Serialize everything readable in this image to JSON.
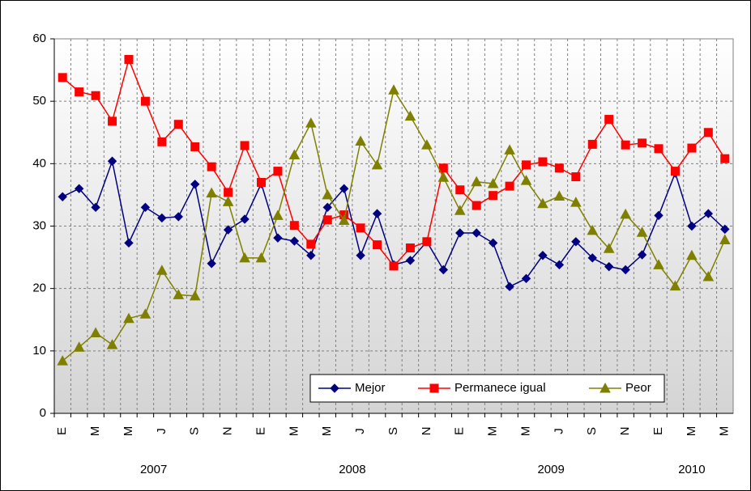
{
  "chart_data": {
    "type": "line",
    "categories": [
      "E",
      null,
      "M",
      null,
      "M",
      null,
      "J",
      null,
      "S",
      null,
      "N",
      null,
      "E",
      null,
      "M",
      null,
      "M",
      null,
      "J",
      null,
      "S",
      null,
      "N",
      null,
      "E",
      null,
      "M",
      null,
      "M",
      null,
      "J",
      null,
      "S",
      null,
      "N",
      null,
      "E",
      null,
      "M",
      null,
      "M"
    ],
    "years": [
      "2007",
      "2008",
      "2009",
      "2010"
    ],
    "ylim": [
      0,
      60
    ],
    "yticks": [
      0,
      10,
      20,
      30,
      40,
      50,
      60
    ],
    "grid": true,
    "series": [
      {
        "name": "Mejor",
        "color": "#000080",
        "marker": "diamond",
        "values": [
          34.7,
          36.0,
          33.0,
          40.4,
          27.3,
          33.0,
          31.3,
          31.5,
          36.7,
          24.0,
          29.4,
          31.1,
          36.8,
          28.1,
          27.6,
          25.3,
          33.0,
          36.0,
          25.3,
          32.0,
          23.8,
          24.5,
          27.5,
          23.0,
          28.9,
          28.9,
          27.3,
          20.3,
          21.6,
          25.3,
          23.8,
          27.5,
          24.9,
          23.5,
          23.0,
          25.4,
          31.7,
          38.5,
          30.0,
          32.0,
          29.5
        ]
      },
      {
        "name": "Permanece igual",
        "color": "#ff0000",
        "marker": "square",
        "values": [
          53.8,
          51.5,
          50.9,
          46.8,
          56.7,
          50.0,
          43.5,
          46.3,
          42.7,
          39.5,
          35.4,
          42.9,
          37.0,
          38.8,
          30.1,
          27.1,
          31.0,
          31.8,
          29.7,
          27.0,
          23.6,
          26.5,
          27.5,
          39.3,
          35.8,
          33.3,
          34.9,
          36.4,
          39.8,
          40.3,
          39.3,
          37.9,
          43.1,
          47.1,
          43.0,
          43.3,
          42.4,
          38.8,
          42.5,
          45.0,
          40.8
        ]
      },
      {
        "name": "Peor",
        "color": "#808000",
        "marker": "triangle",
        "values": [
          8.4,
          10.6,
          12.9,
          11.0,
          15.2,
          15.9,
          22.9,
          19.0,
          18.8,
          35.3,
          33.9,
          24.9,
          24.9,
          31.7,
          41.4,
          46.5,
          35.0,
          30.9,
          43.6,
          39.8,
          51.8,
          47.6,
          43.0,
          37.8,
          32.5,
          37.1,
          36.8,
          42.2,
          37.3,
          33.6,
          34.8,
          33.8,
          29.3,
          26.4,
          31.9,
          29.0,
          23.8,
          20.4,
          25.3,
          21.9,
          27.8
        ]
      }
    ]
  }
}
